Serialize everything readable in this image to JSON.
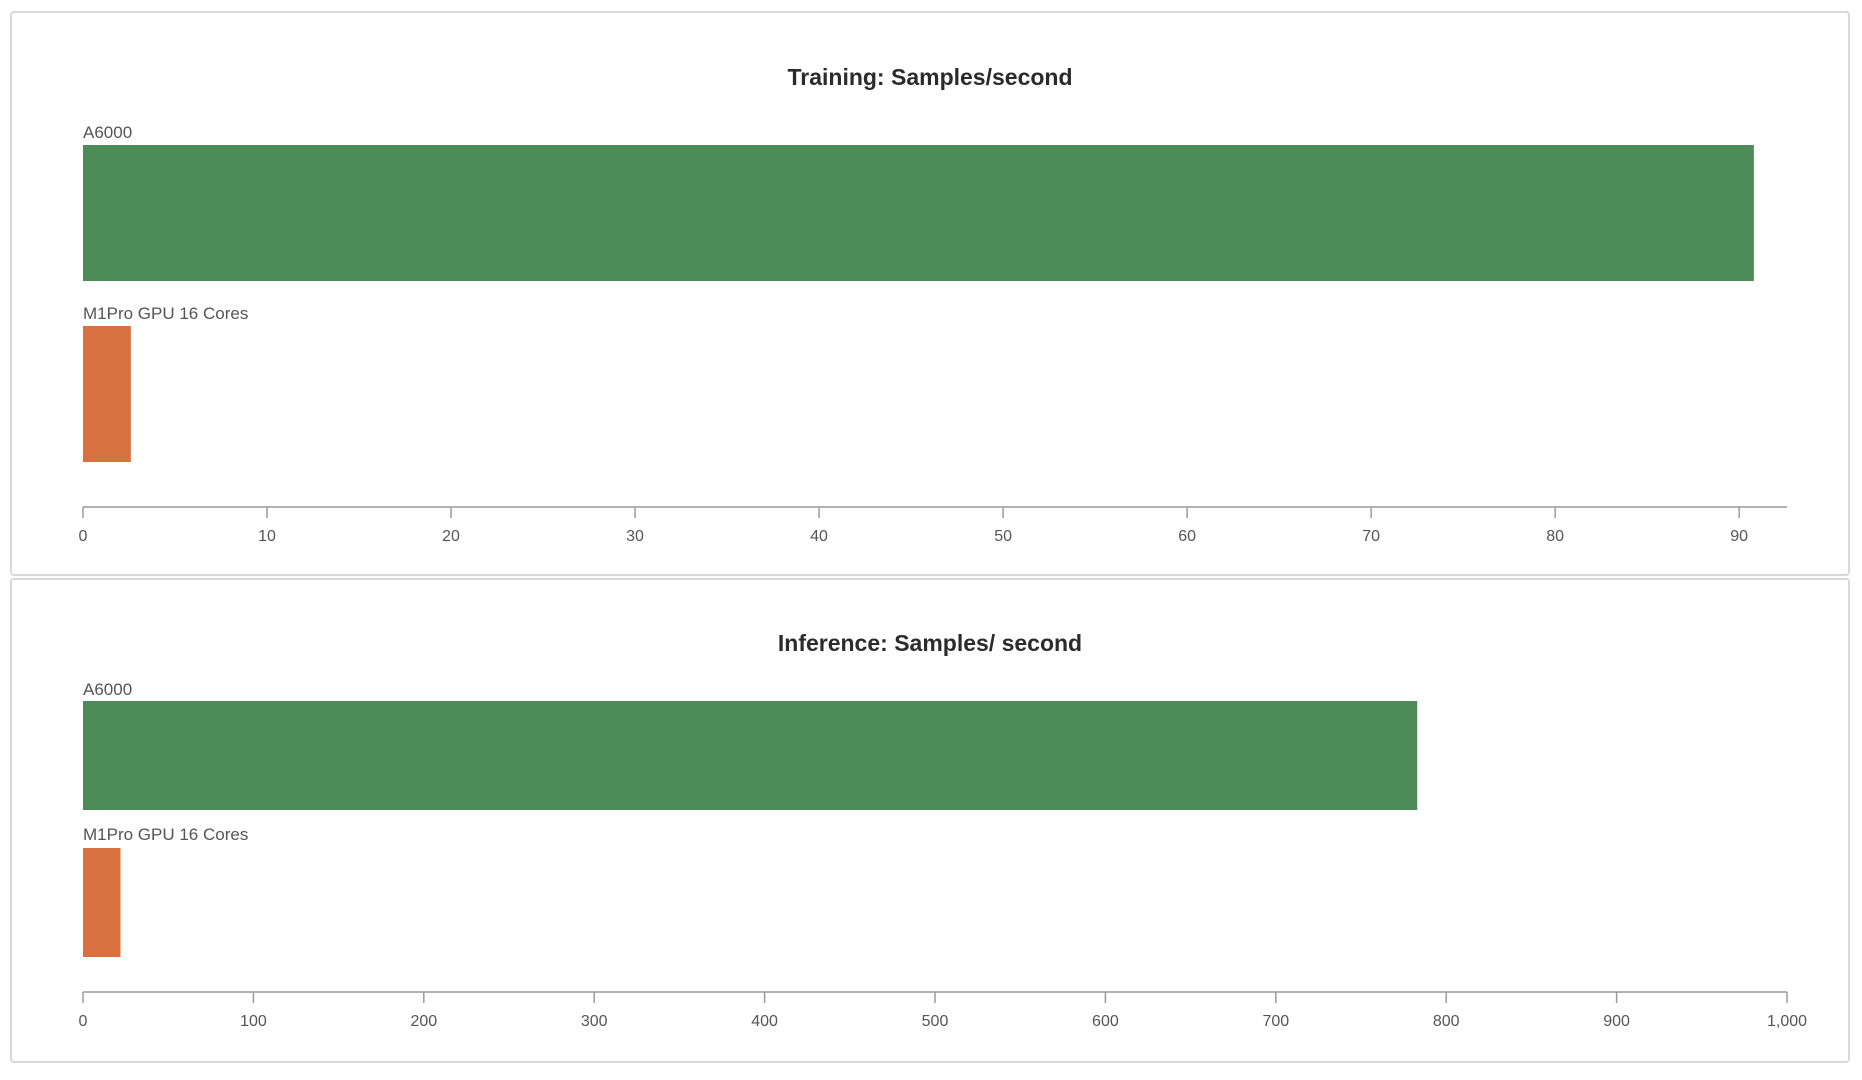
{
  "colors": {
    "a6000": "#4d8c58",
    "m1pro": "#d9703f",
    "axis": "#9a9a9a",
    "border": "#d9d9d9"
  },
  "chart_data": [
    {
      "type": "bar",
      "orientation": "horizontal",
      "title": "Training: Samples/second",
      "categories": [
        "A6000",
        "M1Pro GPU 16 Cores"
      ],
      "values": [
        90.8,
        2.6
      ],
      "xlim": [
        0,
        92.6
      ],
      "xticks": [
        0,
        10,
        20,
        30,
        40,
        50,
        60,
        70,
        80,
        90
      ],
      "xtick_labels": [
        "0",
        "10",
        "20",
        "30",
        "40",
        "50",
        "60",
        "70",
        "80",
        "90"
      ],
      "xlabel": "",
      "ylabel": "",
      "grid": false,
      "legend": "none"
    },
    {
      "type": "bar",
      "orientation": "horizontal",
      "title": "Inference: Samples/ second",
      "categories": [
        "A6000",
        "M1Pro GPU 16 Cores"
      ],
      "values": [
        783,
        22
      ],
      "xlim": [
        0,
        1000
      ],
      "xticks": [
        0,
        100,
        200,
        300,
        400,
        500,
        600,
        700,
        800,
        900,
        1000
      ],
      "xtick_labels": [
        "0",
        "100",
        "200",
        "300",
        "400",
        "500",
        "600",
        "700",
        "800",
        "900",
        "1,000"
      ],
      "xlabel": "",
      "ylabel": "",
      "grid": false,
      "legend": "none"
    }
  ]
}
